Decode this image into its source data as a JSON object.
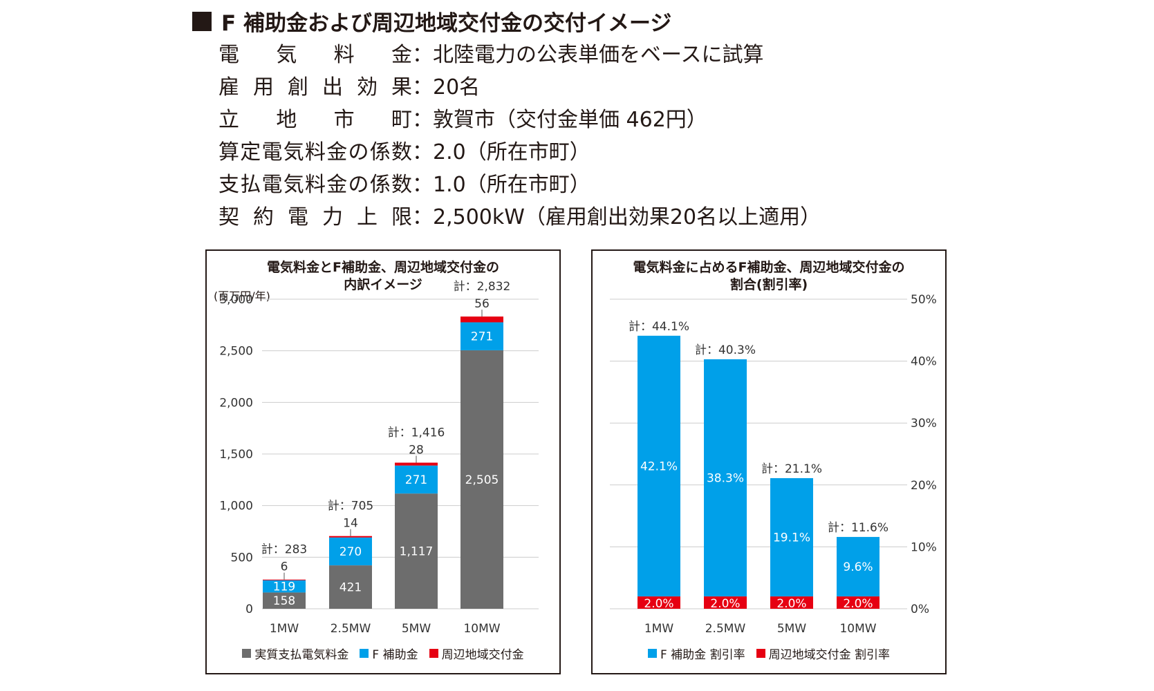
{
  "heading": "F 補助金および周辺地域交付金の交付イメージ",
  "conditions": [
    {
      "label": "電気料金",
      "value": "北陸電力の公表単価をベースに試算"
    },
    {
      "label": "雇用創出効果",
      "value": "20名"
    },
    {
      "label": "立地市町",
      "value": "敦賀市（交付金単価 462円）"
    },
    {
      "label": "算定電気料金の係数",
      "value": "2.0（所在市町）"
    },
    {
      "label": "支払電気料金の係数",
      "value": "1.0（所在市町）"
    },
    {
      "label": "契約電力上限",
      "value": "2,500kW（雇用創出効果20名以上適用）"
    }
  ],
  "colors": {
    "gray": "#6d6d6d",
    "blue": "#00a0e9",
    "red": "#e60012",
    "grid": "#cccccc"
  },
  "chart_data": [
    {
      "type": "bar",
      "stacked": true,
      "title_lines": [
        "電気料金とF補助金、周辺地域交付金の",
        "内訳イメージ"
      ],
      "unit_label": "(百万円/年)",
      "categories": [
        "1MW",
        "2.5MW",
        "5MW",
        "10MW"
      ],
      "ylim": [
        0,
        3000
      ],
      "yticks": [
        0,
        500,
        1000,
        1500,
        2000,
        2500,
        3000
      ],
      "ytick_labels": [
        "0",
        "500",
        "1,000",
        "1,500",
        "2,000",
        "2,500",
        "3,000"
      ],
      "series": [
        {
          "name": "実質支払電気料金",
          "color": "#6d6d6d",
          "values": [
            158,
            421,
            1117,
            2505
          ],
          "labels": [
            "158",
            "421",
            "1,117",
            "2,505"
          ]
        },
        {
          "name": "F補助金",
          "color": "#00a0e9",
          "values": [
            119,
            270,
            271,
            271
          ],
          "labels": [
            "119",
            "270",
            "271",
            "271"
          ]
        },
        {
          "name": "周辺地域交付金",
          "color": "#e60012",
          "values": [
            6,
            14,
            28,
            56
          ],
          "labels": [
            "6",
            "14",
            "28",
            "56"
          ]
        }
      ],
      "totals": [
        283,
        705,
        1416,
        2832
      ],
      "total_labels": [
        "計：283",
        "計：705",
        "計：1,416",
        "計：2,832"
      ],
      "legend": [
        "実質支払電気料金",
        "F 補助金",
        "周辺地域交付金"
      ]
    },
    {
      "type": "bar",
      "stacked": true,
      "title_lines": [
        "電気料金に占めるF補助金、周辺地域交付金の",
        "割合(割引率)"
      ],
      "categories": [
        "1MW",
        "2.5MW",
        "5MW",
        "10MW"
      ],
      "ylim": [
        0,
        50
      ],
      "yticks": [
        0,
        10,
        20,
        30,
        40,
        50
      ],
      "ytick_labels": [
        "0%",
        "10%",
        "20%",
        "30%",
        "40%",
        "50%"
      ],
      "y_axis_side": "right",
      "series": [
        {
          "name": "周辺地域交付金 割引率",
          "color": "#e60012",
          "values": [
            2.0,
            2.0,
            2.0,
            2.0
          ],
          "labels": [
            "2.0%",
            "2.0%",
            "2.0%",
            "2.0%"
          ]
        },
        {
          "name": "F補助金 割引率",
          "color": "#00a0e9",
          "values": [
            42.1,
            38.3,
            19.1,
            9.6
          ],
          "labels": [
            "42.1%",
            "38.3%",
            "19.1%",
            "9.6%"
          ]
        }
      ],
      "totals": [
        44.1,
        40.3,
        21.1,
        11.6
      ],
      "total_labels": [
        "計：44.1%",
        "計：40.3%",
        "計：21.1%",
        "計：11.6%"
      ],
      "legend": [
        "F 補助金 割引率",
        "周辺地域交付金 割引率"
      ]
    }
  ]
}
